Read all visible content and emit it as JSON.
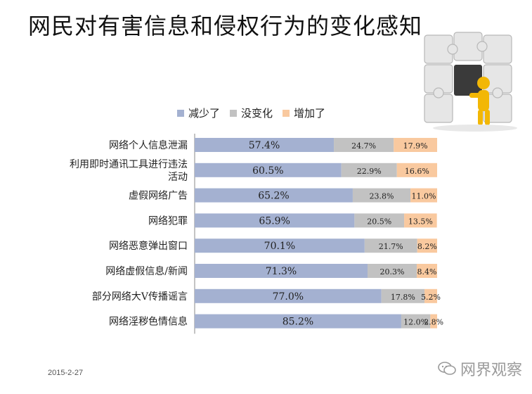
{
  "page": {
    "title": "网民对有害信息和侵权行为的变化感知",
    "date": "2015-2-27",
    "watermark": "网界观察"
  },
  "chart_data": {
    "type": "bar",
    "stacked": true,
    "orientation": "horizontal",
    "categories": [
      "网络个人信息泄漏",
      "利用即时通讯工具进行违法活动",
      "虚假网络广告",
      "网络犯罪",
      "网络恶意弹出窗口",
      "网络虚假信息/新闻",
      "部分网络大V传播谣言",
      "网络淫秽色情信息"
    ],
    "category_lines": [
      [
        "网络个人信息泄漏"
      ],
      [
        "利用即时通讯工具进行违法",
        "活动"
      ],
      [
        "虚假网络广告"
      ],
      [
        "网络犯罪"
      ],
      [
        "网络恶意弹出窗口"
      ],
      [
        "网络虚假信息/新闻"
      ],
      [
        "部分网络大V传播谣言"
      ],
      [
        "网络淫秽色情信息"
      ]
    ],
    "series": [
      {
        "name": "减少了",
        "color": "#a4b1d1",
        "values": [
          57.4,
          60.5,
          65.2,
          65.9,
          70.1,
          71.3,
          77.0,
          85.2
        ]
      },
      {
        "name": "没变化",
        "color": "#c2c2c2",
        "values": [
          24.7,
          22.9,
          23.8,
          20.5,
          21.7,
          20.3,
          17.8,
          12.0
        ]
      },
      {
        "name": "增加了",
        "color": "#f9c99f",
        "values": [
          17.9,
          16.6,
          11.0,
          13.5,
          8.2,
          8.4,
          5.2,
          2.8
        ]
      }
    ],
    "data_labels": [
      [
        "57.4%",
        "60.5%",
        "65.2%",
        "65.9%",
        "70.1%",
        "71.3%",
        "77.0%",
        "85.2%"
      ],
      [
        "24.7%",
        "22.9%",
        "23.8%",
        "20.5%",
        "21.7%",
        "20.3%",
        "17.8%",
        "12.0%"
      ],
      [
        "17.9%",
        "16.6%",
        "11.0%",
        "13.5%",
        "8.2%",
        "8.4%",
        "5.2%",
        "2.8%"
      ]
    ],
    "xlim": [
      0,
      100
    ],
    "legend_position": "top"
  }
}
